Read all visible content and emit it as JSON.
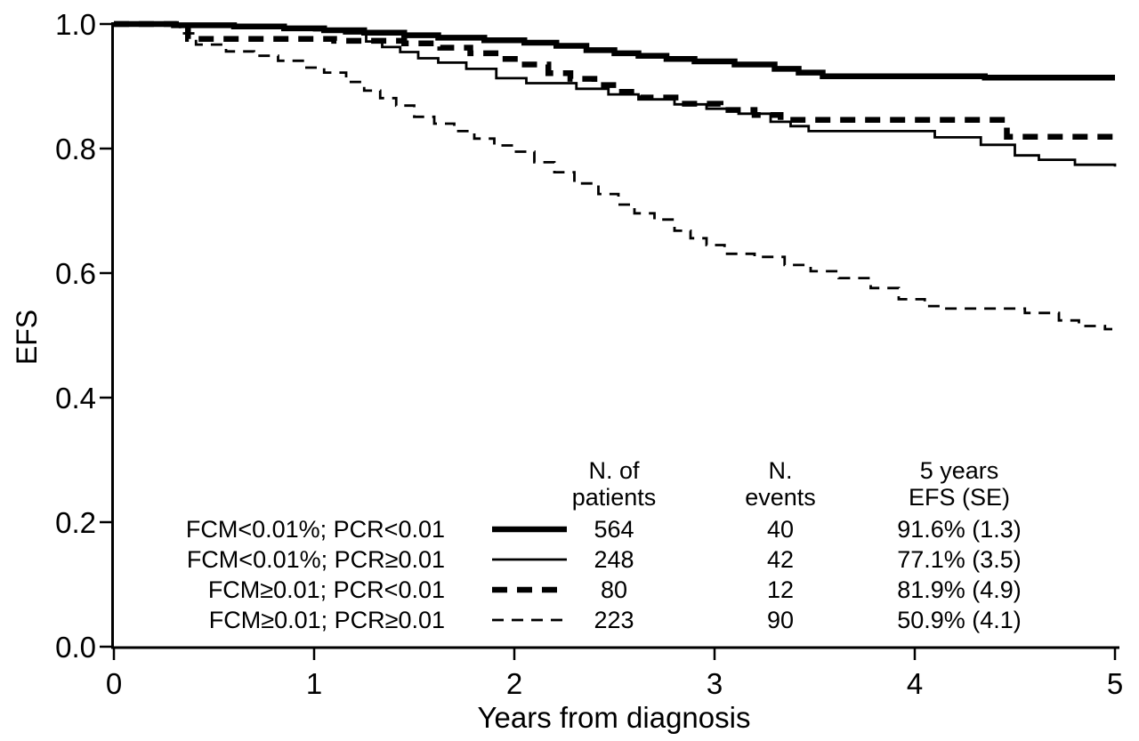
{
  "chart_data": {
    "type": "line",
    "subtype": "kaplan-meier-step",
    "title": "",
    "xlabel": "Years from diagnosis",
    "ylabel": "EFS",
    "xlim": [
      0,
      5
    ],
    "ylim": [
      0.0,
      1.0
    ],
    "grid": false,
    "line_color": "#000000",
    "background": "#ffffff",
    "x_tick_labels": [
      "0",
      "1",
      "2",
      "3",
      "4",
      "5"
    ],
    "x_tick_values": [
      0,
      1,
      2,
      3,
      4,
      5
    ],
    "y_tick_labels": [
      "1.0",
      "0.8",
      "0.6",
      "0.4",
      "0.2",
      "0.0"
    ],
    "y_tick_values": [
      1.0,
      0.8,
      0.6,
      0.4,
      0.2,
      0.0
    ],
    "legend": {
      "position": "inside-bottom",
      "patients_header": [
        "N. of",
        "patients"
      ],
      "events_header": [
        "N.",
        "events"
      ],
      "efs_header": [
        "5 years",
        "EFS (SE)"
      ]
    },
    "series": [
      {
        "label": "FCM<0.01%; PCR<0.01",
        "line": "thick-solid",
        "n_patients": "564",
        "n_events": "40",
        "efs_5y": "91.6% (1.3)",
        "points": [
          [
            0,
            1.0
          ],
          [
            0.3,
            0.998
          ],
          [
            0.6,
            0.996
          ],
          [
            0.85,
            0.993
          ],
          [
            1.05,
            0.99
          ],
          [
            1.25,
            0.986
          ],
          [
            1.45,
            0.982
          ],
          [
            1.62,
            0.978
          ],
          [
            1.85,
            0.974
          ],
          [
            2.05,
            0.97
          ],
          [
            2.21,
            0.965
          ],
          [
            2.36,
            0.958
          ],
          [
            2.5,
            0.953
          ],
          [
            2.62,
            0.949
          ],
          [
            2.76,
            0.944
          ],
          [
            2.9,
            0.94
          ],
          [
            3.1,
            0.935
          ],
          [
            3.3,
            0.928
          ],
          [
            3.42,
            0.922
          ],
          [
            3.54,
            0.916
          ],
          [
            4.35,
            0.914
          ],
          [
            5,
            0.914
          ]
        ]
      },
      {
        "label": "FCM<0.01%; PCR≥0.01",
        "line": "thin-solid",
        "n_patients": "248",
        "n_events": "42",
        "efs_5y": "77.1% (3.5)",
        "points": [
          [
            0,
            1.0
          ],
          [
            0.45,
            0.997
          ],
          [
            0.75,
            0.994
          ],
          [
            1.0,
            0.99
          ],
          [
            1.15,
            0.985
          ],
          [
            1.26,
            0.972
          ],
          [
            1.34,
            0.963
          ],
          [
            1.43,
            0.955
          ],
          [
            1.52,
            0.945
          ],
          [
            1.62,
            0.938
          ],
          [
            1.76,
            0.928
          ],
          [
            1.91,
            0.913
          ],
          [
            2.06,
            0.905
          ],
          [
            2.31,
            0.896
          ],
          [
            2.47,
            0.887
          ],
          [
            2.62,
            0.879
          ],
          [
            2.8,
            0.871
          ],
          [
            2.96,
            0.864
          ],
          [
            3.12,
            0.856
          ],
          [
            3.28,
            0.843
          ],
          [
            3.38,
            0.836
          ],
          [
            3.47,
            0.828
          ],
          [
            4.1,
            0.818
          ],
          [
            4.33,
            0.806
          ],
          [
            4.5,
            0.789
          ],
          [
            4.62,
            0.782
          ],
          [
            4.8,
            0.774
          ],
          [
            5,
            0.771
          ]
        ]
      },
      {
        "label": "FCM≥0.01; PCR<0.01",
        "line": "thick-dashed",
        "n_patients": "80",
        "n_events": "12",
        "efs_5y": "81.9% (4.9)",
        "points": [
          [
            0,
            1.0
          ],
          [
            0.37,
            0.976
          ],
          [
            1.1,
            0.973
          ],
          [
            1.45,
            0.969
          ],
          [
            1.63,
            0.962
          ],
          [
            1.78,
            0.953
          ],
          [
            1.93,
            0.944
          ],
          [
            2.03,
            0.935
          ],
          [
            2.17,
            0.921
          ],
          [
            2.28,
            0.912
          ],
          [
            2.4,
            0.902
          ],
          [
            2.52,
            0.891
          ],
          [
            2.63,
            0.882
          ],
          [
            2.82,
            0.872
          ],
          [
            3.03,
            0.862
          ],
          [
            3.2,
            0.854
          ],
          [
            3.33,
            0.846
          ],
          [
            4.46,
            0.819
          ],
          [
            5,
            0.819
          ]
        ]
      },
      {
        "label": "FCM≥0.01; PCR≥0.01",
        "line": "thin-dashed",
        "n_patients": "223",
        "n_events": "90",
        "efs_5y": "50.9% (4.1)",
        "points": [
          [
            0,
            1.0
          ],
          [
            0.33,
            0.985
          ],
          [
            0.41,
            0.967
          ],
          [
            0.56,
            0.956
          ],
          [
            0.7,
            0.949
          ],
          [
            0.82,
            0.941
          ],
          [
            0.95,
            0.93
          ],
          [
            1.05,
            0.922
          ],
          [
            1.16,
            0.907
          ],
          [
            1.25,
            0.893
          ],
          [
            1.33,
            0.881
          ],
          [
            1.41,
            0.869
          ],
          [
            1.5,
            0.851
          ],
          [
            1.6,
            0.84
          ],
          [
            1.7,
            0.828
          ],
          [
            1.8,
            0.816
          ],
          [
            1.9,
            0.805
          ],
          [
            2.0,
            0.795
          ],
          [
            2.1,
            0.778
          ],
          [
            2.2,
            0.762
          ],
          [
            2.3,
            0.744
          ],
          [
            2.42,
            0.727
          ],
          [
            2.52,
            0.71
          ],
          [
            2.6,
            0.696
          ],
          [
            2.7,
            0.686
          ],
          [
            2.8,
            0.668
          ],
          [
            2.88,
            0.656
          ],
          [
            2.96,
            0.645
          ],
          [
            3.05,
            0.631
          ],
          [
            3.2,
            0.626
          ],
          [
            3.35,
            0.613
          ],
          [
            3.48,
            0.603
          ],
          [
            3.62,
            0.592
          ],
          [
            3.78,
            0.576
          ],
          [
            3.92,
            0.558
          ],
          [
            4.05,
            0.547
          ],
          [
            4.15,
            0.543
          ],
          [
            4.55,
            0.536
          ],
          [
            4.72,
            0.524
          ],
          [
            4.82,
            0.515
          ],
          [
            4.95,
            0.51
          ],
          [
            5,
            0.509
          ]
        ]
      }
    ]
  }
}
